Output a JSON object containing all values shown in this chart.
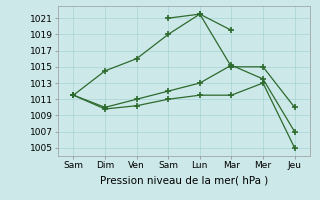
{
  "x_labels": [
    "Sam",
    "Dim",
    "Ven",
    "Sam",
    "Lun",
    "Mar",
    "Mer",
    "Jeu"
  ],
  "x_positions": [
    0,
    1,
    2,
    3,
    4,
    5,
    6,
    7
  ],
  "series": [
    {
      "name": "line1_forecast_high",
      "y": [
        1011.5,
        1014.5,
        1016.0,
        1019.0,
        1021.5,
        1019.5,
        null,
        null
      ]
    },
    {
      "name": "line2_actual",
      "y": [
        null,
        null,
        null,
        1021.0,
        1021.5,
        1015.0,
        1015.0,
        1010.0
      ]
    },
    {
      "name": "line3_mid",
      "y": [
        1011.5,
        1010.0,
        1011.0,
        1012.0,
        1013.0,
        1015.2,
        1013.5,
        1007.0
      ]
    },
    {
      "name": "line4_low",
      "y": [
        1011.5,
        1009.8,
        1010.2,
        1011.0,
        1011.5,
        1011.5,
        1013.0,
        1005.0
      ]
    }
  ],
  "line_color": "#2d6a2d",
  "marker": "+",
  "marker_size": 4,
  "marker_edge_width": 1.2,
  "line_width": 0.9,
  "bg_color": "#cce8e8",
  "grid_color": "#a8d4d4",
  "ylim": [
    1004.0,
    1022.5
  ],
  "yticks": [
    1005,
    1007,
    1009,
    1011,
    1013,
    1015,
    1017,
    1019,
    1021
  ],
  "xlabel": "Pression niveau de la mer( hPa )",
  "tick_fontsize": 6.5,
  "xlabel_fontsize": 7.5
}
